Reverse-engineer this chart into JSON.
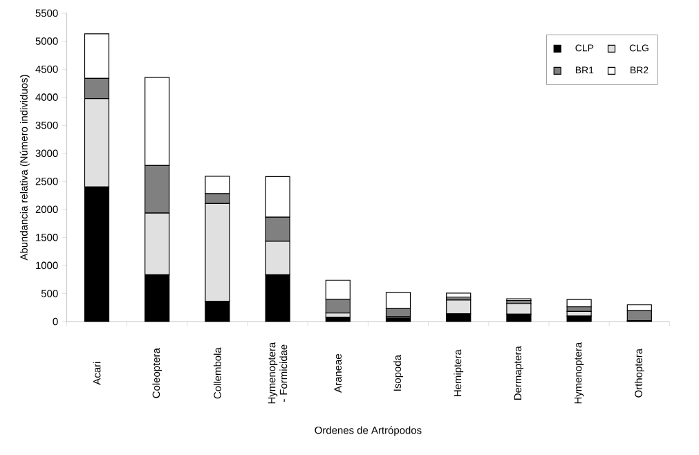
{
  "chart_data": {
    "type": "bar",
    "stacked": true,
    "xlabel": "Ordenes de Artrópodos",
    "ylabel": "Abundancia relativa (Número individuos)",
    "categories": [
      "Acari",
      "Coleoptera",
      "Collembola",
      "Hymenoptera - Formicidae",
      "Araneae",
      "Isopoda",
      "Hemiptera",
      "Dermaptera",
      "Hymenoptera",
      "Orthoptera"
    ],
    "series": [
      {
        "name": "CLP",
        "color": "#000000",
        "values": [
          2400,
          835,
          358,
          835,
          78,
          65,
          139,
          131,
          98,
          8
        ]
      },
      {
        "name": "CLG",
        "color": "#e0e0e0",
        "values": [
          1575,
          1099,
          1745,
          597,
          74,
          25,
          245,
          192,
          82,
          8
        ]
      },
      {
        "name": "BR1",
        "color": "#808080",
        "values": [
          362,
          848,
          177,
          428,
          247,
          139,
          54,
          53,
          82,
          176
        ]
      },
      {
        "name": "BR2",
        "color": "#ffffff",
        "values": [
          794,
          1572,
          312,
          724,
          338,
          290,
          69,
          29,
          131,
          107
        ]
      }
    ],
    "ylim": [
      0,
      5500
    ],
    "yticks": [
      0,
      500,
      1000,
      1500,
      2000,
      2500,
      3000,
      3500,
      4000,
      4500,
      5000,
      5500
    ],
    "grid": false,
    "legend": "top right"
  }
}
